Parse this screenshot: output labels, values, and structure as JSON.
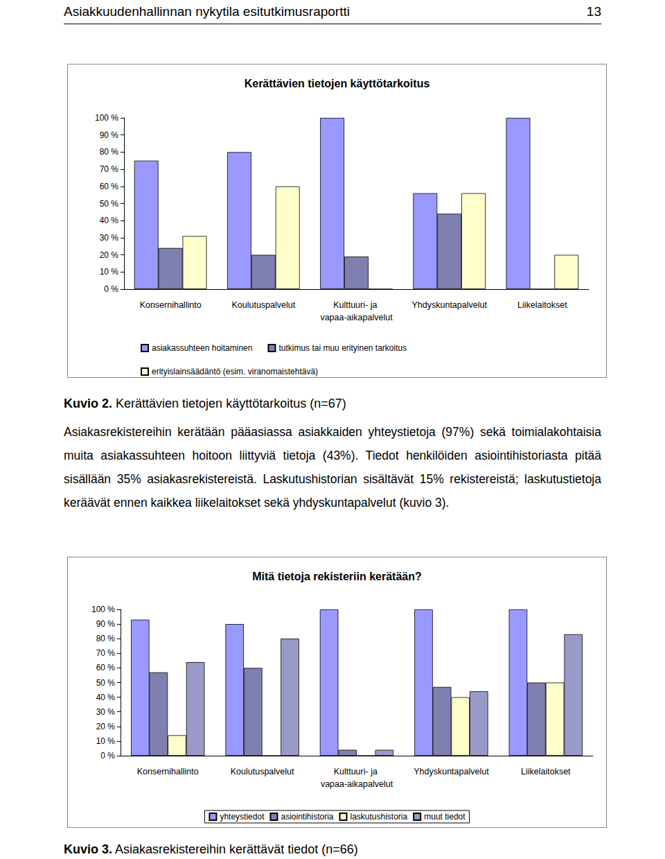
{
  "header": {
    "title": "Asiakkuudenhallinnan nykytila esitutkimusraportti",
    "page": "13"
  },
  "chart_data": [
    {
      "type": "bar",
      "title": "Kerättävien tietojen käyttötarkoitus",
      "categories": [
        "Konsernihallinto",
        "Koulutuspalvelut",
        "Kulttuuri- ja vapaa-aikapalvelut",
        "Yhdyskuntapalvelut",
        "Liikelaitokset"
      ],
      "series": [
        {
          "name": "asiakassuhteen hoitaminen",
          "color": "#9999ff",
          "values": [
            75,
            80,
            100,
            56,
            100
          ]
        },
        {
          "name": "tutkimus tai muu erityinen tarkoitus",
          "color": "#8080b0",
          "values": [
            24,
            20,
            19,
            44,
            0
          ]
        },
        {
          "name": "erityislainsäädäntö (esim. viranomaistehtävä)",
          "color": "#ffffcc",
          "values": [
            31,
            60,
            0,
            56,
            20
          ]
        }
      ],
      "ylim": [
        0,
        100
      ],
      "yticks": [
        {
          "value": 0,
          "label": "0 %"
        },
        {
          "value": 10,
          "label": "10 %"
        },
        {
          "value": 20,
          "label": "20 %"
        },
        {
          "value": 30,
          "label": "30 %"
        },
        {
          "value": 40,
          "label": "40 %"
        },
        {
          "value": 50,
          "label": "50 %"
        },
        {
          "value": 60,
          "label": "60 %"
        },
        {
          "value": 70,
          "label": "70 %"
        },
        {
          "value": 80,
          "label": "80 %"
        },
        {
          "value": 90,
          "label": "90 %"
        },
        {
          "value": 100,
          "label": "100 %"
        }
      ],
      "grid": false,
      "legend": "bottom"
    },
    {
      "type": "bar",
      "title": "Mitä tietoja rekisteriin kerätään?",
      "categories": [
        "Konsernihallinto",
        "Koulutuspalvelut",
        "Kulttuuri- ja vapaa-aikapalvelut",
        "Yhdyskuntapalvelut",
        "Liikelaitokset"
      ],
      "series": [
        {
          "name": "yhteystiedot",
          "color": "#9999ff",
          "values": [
            93,
            90,
            100,
            100,
            100
          ]
        },
        {
          "name": "asiointihistoria",
          "color": "#8080b0",
          "values": [
            57,
            60,
            4,
            47,
            50
          ]
        },
        {
          "name": "laskutushistoria",
          "color": "#ffffcc",
          "values": [
            14,
            0,
            0,
            40,
            50
          ]
        },
        {
          "name": "muut tiedot",
          "color": "#9a9ac8",
          "values": [
            64,
            80,
            4,
            44,
            83
          ]
        }
      ],
      "ylim": [
        0,
        100
      ],
      "yticks": [
        {
          "value": 0,
          "label": "0 %"
        },
        {
          "value": 10,
          "label": "10 %"
        },
        {
          "value": 20,
          "label": "20 %"
        },
        {
          "value": 30,
          "label": "30 %"
        },
        {
          "value": 40,
          "label": "40 %"
        },
        {
          "value": 50,
          "label": "50 %"
        },
        {
          "value": 60,
          "label": "60 %"
        },
        {
          "value": 70,
          "label": "70 %"
        },
        {
          "value": 80,
          "label": "80 %"
        },
        {
          "value": 90,
          "label": "90 %"
        },
        {
          "value": 100,
          "label": "100 %"
        }
      ],
      "grid": false,
      "legend": "bottom"
    }
  ],
  "figure_captions": [
    {
      "label": "Kuvio 2.",
      "text": "Kerättävien tietojen käyttötarkoitus (n=67)"
    },
    {
      "label": "Kuvio 3.",
      "text": "Asiakasrekistereihin kerättävät tiedot (n=66)"
    }
  ],
  "paragraph": "Asiakasrekistereihin kerätään pääasiassa asiakkaiden yhteystietoja (97%) sekä toimialakohtaisia muita asiakassuhteen hoitoon liittyviä tietoja (43%). Tiedot henkilöiden asiointihistoriasta pitää sisällään 35% asiakasrekistereistä. Laskutushistorian sisältävät 15% rekistereistä; laskutustietoja keräävät ennen kaikkea liikelaitokset sekä yhdyskuntapalvelut (kuvio 3)."
}
